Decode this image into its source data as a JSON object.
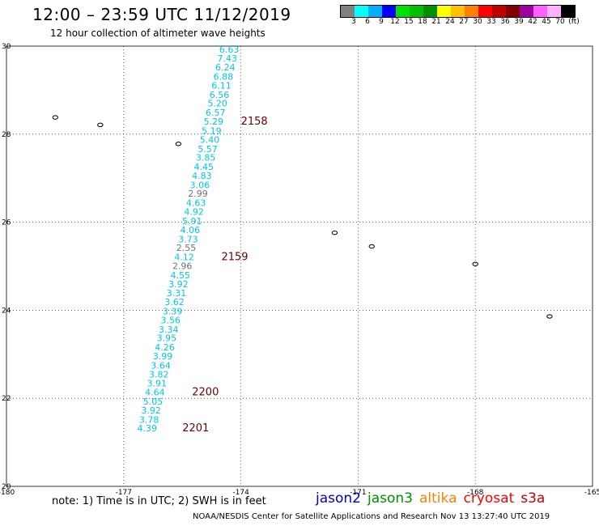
{
  "header": {
    "title": "12:00 – 23:59 UTC 11/12/2019",
    "subtitle": "12 hour collection of altimeter wave heights"
  },
  "legend": {
    "colors": [
      "#808080",
      "#00ffff",
      "#00b0ff",
      "#0000ff",
      "#00e000",
      "#00c000",
      "#009000",
      "#ffff00",
      "#ffc000",
      "#ff8000",
      "#ff0000",
      "#c00000",
      "#800000",
      "#a000a0",
      "#ff60ff",
      "#ffb0ff",
      "#000000"
    ],
    "labels": [
      "3",
      "6",
      "9",
      "12",
      "15",
      "18",
      "21",
      "24",
      "27",
      "30",
      "33",
      "36",
      "39",
      "42",
      "45",
      "70"
    ],
    "unit": "(ft)"
  },
  "axes": {
    "x_ticks": [
      "-180",
      "-177",
      "-174",
      "-171",
      "-168",
      "-165"
    ],
    "y_ticks": [
      "30",
      "28",
      "26",
      "24",
      "22",
      "20"
    ]
  },
  "colors": {
    "cyan": "#00c8e6",
    "gray": "#707070",
    "time": "#6b0000"
  },
  "chart_data": {
    "type": "scatter",
    "x_unit": "longitude",
    "y_unit": "latitude",
    "xlim": [
      -180,
      -165
    ],
    "ylim": [
      20,
      30
    ],
    "grid": true,
    "points": [
      {
        "lon": -174.3,
        "lat": 29.93,
        "value": "6.63",
        "color": "cyan"
      },
      {
        "lon": -174.35,
        "lat": 29.72,
        "value": "7.43",
        "color": "cyan"
      },
      {
        "lon": -174.4,
        "lat": 29.52,
        "value": "6.24",
        "color": "cyan"
      },
      {
        "lon": -174.45,
        "lat": 29.31,
        "value": "6.88",
        "color": "cyan"
      },
      {
        "lon": -174.5,
        "lat": 29.11,
        "value": "6.11",
        "color": "cyan"
      },
      {
        "lon": -174.55,
        "lat": 28.9,
        "value": "6.56",
        "color": "cyan"
      },
      {
        "lon": -174.6,
        "lat": 28.7,
        "value": "5.20",
        "color": "cyan"
      },
      {
        "lon": -174.65,
        "lat": 28.49,
        "value": "6.57",
        "color": "cyan"
      },
      {
        "lon": -174.7,
        "lat": 28.29,
        "value": "5.29",
        "color": "cyan"
      },
      {
        "lon": -174.75,
        "lat": 28.08,
        "value": "5.19",
        "color": "cyan"
      },
      {
        "lon": -174.8,
        "lat": 27.88,
        "value": "5.40",
        "color": "cyan"
      },
      {
        "lon": -174.85,
        "lat": 27.67,
        "value": "5.57",
        "color": "cyan"
      },
      {
        "lon": -174.9,
        "lat": 27.47,
        "value": "3.85",
        "color": "cyan"
      },
      {
        "lon": -174.95,
        "lat": 27.26,
        "value": "4.45",
        "color": "cyan"
      },
      {
        "lon": -175.0,
        "lat": 27.06,
        "value": "4.83",
        "color": "cyan"
      },
      {
        "lon": -175.05,
        "lat": 26.85,
        "value": "3.06",
        "color": "cyan"
      },
      {
        "lon": -175.1,
        "lat": 26.65,
        "value": "2.99",
        "color": "gray"
      },
      {
        "lon": -175.15,
        "lat": 26.44,
        "value": "4.63",
        "color": "cyan"
      },
      {
        "lon": -175.2,
        "lat": 26.24,
        "value": "4.92",
        "color": "cyan"
      },
      {
        "lon": -175.25,
        "lat": 26.03,
        "value": "5.91",
        "color": "cyan"
      },
      {
        "lon": -175.3,
        "lat": 25.83,
        "value": "4.06",
        "color": "cyan"
      },
      {
        "lon": -175.35,
        "lat": 25.62,
        "value": "3.73",
        "color": "cyan"
      },
      {
        "lon": -175.4,
        "lat": 25.42,
        "value": "2.55",
        "color": "gray"
      },
      {
        "lon": -175.45,
        "lat": 25.21,
        "value": "4.12",
        "color": "cyan"
      },
      {
        "lon": -175.5,
        "lat": 25.01,
        "value": "2.96",
        "color": "gray"
      },
      {
        "lon": -175.55,
        "lat": 24.8,
        "value": "4.55",
        "color": "cyan"
      },
      {
        "lon": -175.6,
        "lat": 24.6,
        "value": "3.92",
        "color": "cyan"
      },
      {
        "lon": -175.65,
        "lat": 24.39,
        "value": "3.31",
        "color": "cyan"
      },
      {
        "lon": -175.7,
        "lat": 24.19,
        "value": "3.62",
        "color": "cyan"
      },
      {
        "lon": -175.75,
        "lat": 23.98,
        "value": "3.39",
        "color": "cyan"
      },
      {
        "lon": -175.8,
        "lat": 23.78,
        "value": "3.56",
        "color": "cyan"
      },
      {
        "lon": -175.85,
        "lat": 23.57,
        "value": "3.34",
        "color": "cyan"
      },
      {
        "lon": -175.9,
        "lat": 23.37,
        "value": "3.95",
        "color": "cyan"
      },
      {
        "lon": -175.95,
        "lat": 23.16,
        "value": "4.26",
        "color": "cyan"
      },
      {
        "lon": -176.0,
        "lat": 22.96,
        "value": "3.99",
        "color": "cyan"
      },
      {
        "lon": -176.05,
        "lat": 22.75,
        "value": "3.64",
        "color": "cyan"
      },
      {
        "lon": -176.1,
        "lat": 22.55,
        "value": "3.82",
        "color": "cyan"
      },
      {
        "lon": -176.15,
        "lat": 22.34,
        "value": "3.91",
        "color": "cyan"
      },
      {
        "lon": -176.2,
        "lat": 22.14,
        "value": "4.64",
        "color": "cyan"
      },
      {
        "lon": -176.25,
        "lat": 21.93,
        "value": "5.05",
        "color": "cyan"
      },
      {
        "lon": -176.3,
        "lat": 21.73,
        "value": "3.92",
        "color": "cyan"
      },
      {
        "lon": -176.35,
        "lat": 21.52,
        "value": "3.78",
        "color": "cyan"
      },
      {
        "lon": -176.4,
        "lat": 21.32,
        "value": "4.39",
        "color": "cyan"
      }
    ],
    "time_labels": [
      {
        "lon": -174.0,
        "lat": 28.29,
        "text": "2158"
      },
      {
        "lon": -174.5,
        "lat": 25.21,
        "text": "2159"
      },
      {
        "lon": -175.25,
        "lat": 22.14,
        "text": "2200"
      },
      {
        "lon": -175.5,
        "lat": 21.32,
        "text": "2201"
      }
    ],
    "islands": [
      {
        "lon": -178.75,
        "lat": 28.38
      },
      {
        "lon": -177.6,
        "lat": 28.21
      },
      {
        "lon": -175.6,
        "lat": 27.78
      },
      {
        "lon": -171.6,
        "lat": 25.76
      },
      {
        "lon": -170.65,
        "lat": 25.45
      },
      {
        "lon": -168.0,
        "lat": 25.05
      },
      {
        "lon": -166.1,
        "lat": 23.86
      }
    ]
  },
  "footer": {
    "note": "note: 1) Time is in UTC; 2) SWH is in feet",
    "credit": "NOAA/NESDIS Center for Satellite Applications and Research    Nov 13 13:27:40 UTC 2019",
    "missions": [
      {
        "name": "jason2",
        "color": "#0000cc"
      },
      {
        "name": "jason3",
        "color": "#009000"
      },
      {
        "name": "altika",
        "color": "#ff8000"
      },
      {
        "name": "cryosat",
        "color": "#ff0000"
      },
      {
        "name": "s3a",
        "color": "#c00000"
      }
    ]
  }
}
